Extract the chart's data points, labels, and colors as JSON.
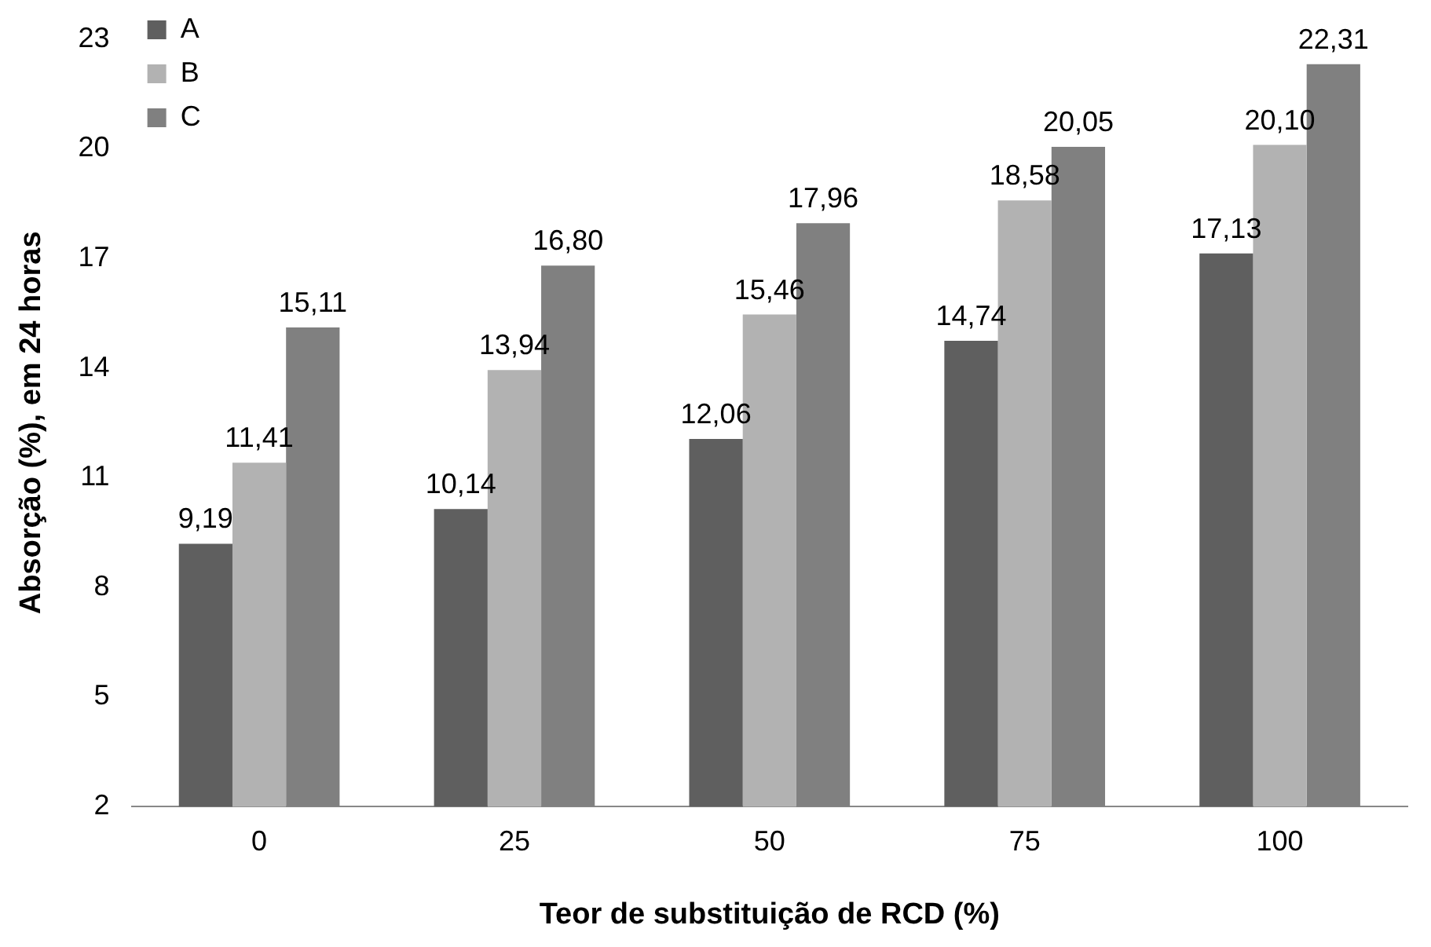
{
  "chart_data": {
    "type": "bar",
    "xlabel": "Teor de substituição de RCD (%)",
    "ylabel": "Absorção (%), em 24 horas",
    "categories": [
      "0",
      "25",
      "50",
      "75",
      "100"
    ],
    "series": [
      {
        "name": "A",
        "color": "#5f5f5f",
        "values": [
          9.19,
          10.14,
          12.06,
          14.74,
          17.13
        ],
        "value_labels": [
          "9,19",
          "10,14",
          "12,06",
          "14,74",
          "17,13"
        ]
      },
      {
        "name": "B",
        "color": "#b2b2b2",
        "values": [
          11.41,
          13.94,
          15.46,
          18.58,
          20.1
        ],
        "value_labels": [
          "11,41",
          "13,94",
          "15,46",
          "18,58",
          "20,10"
        ]
      },
      {
        "name": "C",
        "color": "#808080",
        "values": [
          15.11,
          16.8,
          17.96,
          20.05,
          22.31
        ],
        "value_labels": [
          "15,11",
          "16,80",
          "17,96",
          "20,05",
          "22,31"
        ]
      }
    ],
    "ylim": [
      2,
      23
    ],
    "yticks": [
      2,
      5,
      8,
      11,
      14,
      17,
      20,
      23
    ],
    "grid": false,
    "legend": "top left"
  }
}
